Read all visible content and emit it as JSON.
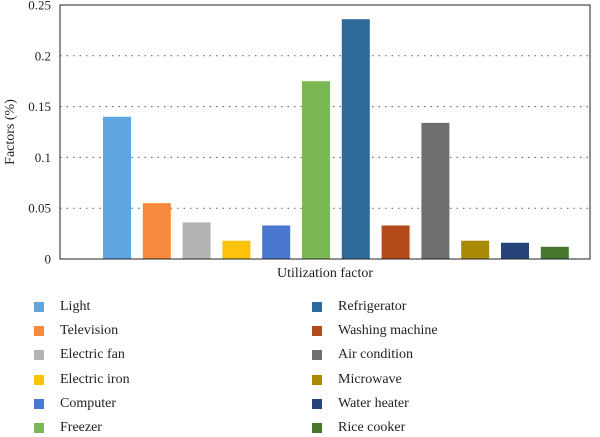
{
  "chart_data": {
    "type": "bar",
    "title": "",
    "xlabel": "Utilization factor",
    "ylabel": "Factors (%)",
    "ylim": [
      0,
      0.25
    ],
    "yticks": [
      "0",
      "0.05",
      "0.1",
      "0.15",
      "0.2",
      "0.25"
    ],
    "grid": "horizontal dotted",
    "legend_placement": "bottom",
    "categories": [
      "Light",
      "Television",
      "Electric fan",
      "Electric iron",
      "Computer",
      "Freezer",
      "Refrigerator",
      "Washing machine",
      "Air condition",
      "Microwave",
      "Water heater",
      "Rice cooker"
    ],
    "values": [
      0.14,
      0.055,
      0.036,
      0.018,
      0.033,
      0.175,
      0.236,
      0.033,
      0.134,
      0.018,
      0.016,
      0.012
    ],
    "colors": [
      "#5ea6e0",
      "#f58a3c",
      "#b3b3b3",
      "#ffc20a",
      "#4a78cf",
      "#7ab852",
      "#2d6a9a",
      "#b34b1a",
      "#6e6e6e",
      "#a88a05",
      "#264478",
      "#46772c"
    ]
  }
}
